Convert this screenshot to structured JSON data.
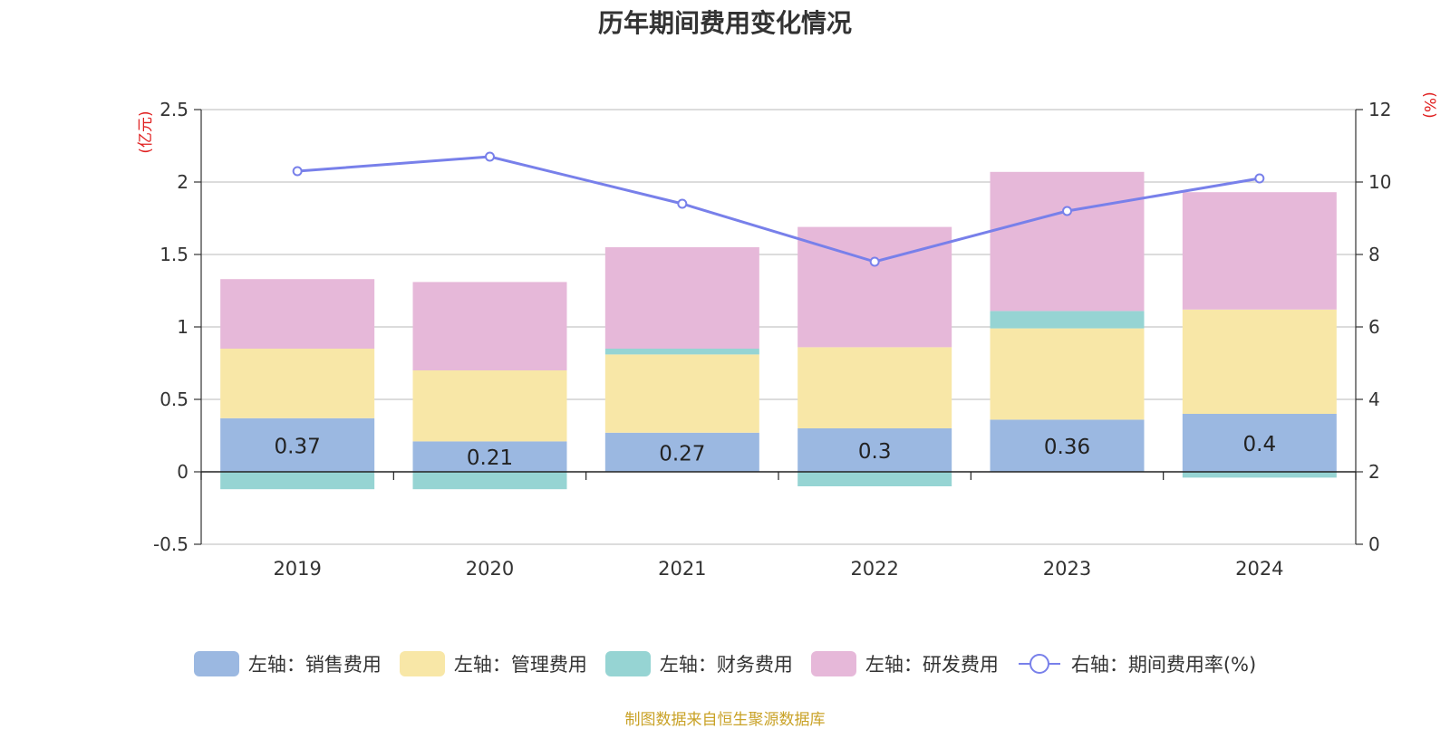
{
  "chart_data": {
    "type": "bar",
    "title": "历年期间费用变化情况",
    "categories": [
      "2019",
      "2020",
      "2021",
      "2022",
      "2023",
      "2024"
    ],
    "left_axis": {
      "unit_label": "(亿元)",
      "ylim": [
        -0.5,
        2.5
      ],
      "ticks": [
        "-0.5",
        "0",
        "0.5",
        "1",
        "1.5",
        "2",
        "2.5"
      ]
    },
    "right_axis": {
      "unit_label": "(%)",
      "ylim": [
        0,
        12
      ],
      "ticks": [
        "0",
        "2",
        "4",
        "6",
        "8",
        "10",
        "12"
      ]
    },
    "stacked": true,
    "series": [
      {
        "name": "左轴：销售费用",
        "axis": "left",
        "color": "#9bb8e1",
        "values": [
          0.37,
          0.21,
          0.27,
          0.3,
          0.36,
          0.4
        ],
        "labels": [
          "0.37",
          "0.21",
          "0.27",
          "0.3",
          "0.36",
          "0.4"
        ]
      },
      {
        "name": "左轴：管理费用",
        "axis": "left",
        "color": "#f8e7a7",
        "values": [
          0.48,
          0.49,
          0.54,
          0.56,
          0.63,
          0.72
        ]
      },
      {
        "name": "左轴：财务费用",
        "axis": "left",
        "color": "#96d4d3",
        "values": [
          -0.12,
          -0.12,
          0.04,
          -0.1,
          0.12,
          -0.04
        ]
      },
      {
        "name": "左轴：研发费用",
        "axis": "left",
        "color": "#e6b8d9",
        "values": [
          0.48,
          0.61,
          0.7,
          0.83,
          0.96,
          0.81
        ]
      },
      {
        "name": "右轴：期间费用率(%)",
        "axis": "right",
        "type": "line",
        "color": "#7880ea",
        "values": [
          10.3,
          10.7,
          9.4,
          7.8,
          9.2,
          10.1
        ]
      }
    ],
    "grid": true,
    "legend_position": "bottom"
  },
  "footer": {
    "source": "制图数据来自恒生聚源数据库"
  }
}
